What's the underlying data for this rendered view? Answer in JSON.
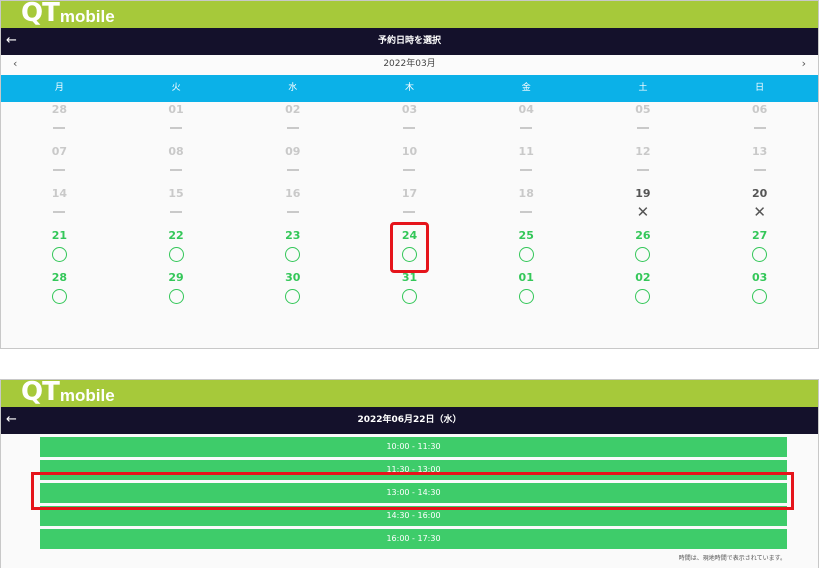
{
  "top": {
    "logo": {
      "q": "Q",
      "t": "T",
      "mobile": "mobile"
    },
    "title": "予約日時を選択",
    "month_label": "2022年03月",
    "weekdays": [
      "月",
      "火",
      "水",
      "木",
      "金",
      "土",
      "日"
    ],
    "days": [
      {
        "day": "28",
        "status": "past"
      },
      {
        "day": "01",
        "status": "past"
      },
      {
        "day": "02",
        "status": "past"
      },
      {
        "day": "03",
        "status": "past"
      },
      {
        "day": "04",
        "status": "past"
      },
      {
        "day": "05",
        "status": "past"
      },
      {
        "day": "06",
        "status": "past"
      },
      {
        "day": "07",
        "status": "past"
      },
      {
        "day": "08",
        "status": "past"
      },
      {
        "day": "09",
        "status": "past"
      },
      {
        "day": "10",
        "status": "past"
      },
      {
        "day": "11",
        "status": "past"
      },
      {
        "day": "12",
        "status": "past"
      },
      {
        "day": "13",
        "status": "past"
      },
      {
        "day": "14",
        "status": "past"
      },
      {
        "day": "15",
        "status": "past"
      },
      {
        "day": "16",
        "status": "past"
      },
      {
        "day": "17",
        "status": "past"
      },
      {
        "day": "18",
        "status": "past"
      },
      {
        "day": "19",
        "status": "full"
      },
      {
        "day": "20",
        "status": "full"
      },
      {
        "day": "21",
        "status": "open"
      },
      {
        "day": "22",
        "status": "open"
      },
      {
        "day": "23",
        "status": "open"
      },
      {
        "day": "24",
        "status": "open"
      },
      {
        "day": "25",
        "status": "open"
      },
      {
        "day": "26",
        "status": "open"
      },
      {
        "day": "27",
        "status": "open"
      },
      {
        "day": "28",
        "status": "open"
      },
      {
        "day": "29",
        "status": "open"
      },
      {
        "day": "30",
        "status": "open"
      },
      {
        "day": "31",
        "status": "open"
      },
      {
        "day": "01",
        "status": "open"
      },
      {
        "day": "02",
        "status": "open"
      },
      {
        "day": "03",
        "status": "open"
      }
    ]
  },
  "bottom": {
    "logo": {
      "q": "Q",
      "t": "T",
      "mobile": "mobile"
    },
    "title": "2022年06月22日（水）",
    "slots": [
      "10:00 - 11:30",
      "11:30 - 13:00",
      "13:00 - 14:30",
      "14:30 - 16:00",
      "16:00 - 17:30"
    ],
    "note": "時間は、現地時間で表示されています。"
  },
  "colors": {
    "brand_green": "#a6c93a",
    "header_navy": "#14112b",
    "weekday_blue": "#0bb1e8",
    "available_green": "#34c759",
    "highlight_red": "#e5141b"
  }
}
